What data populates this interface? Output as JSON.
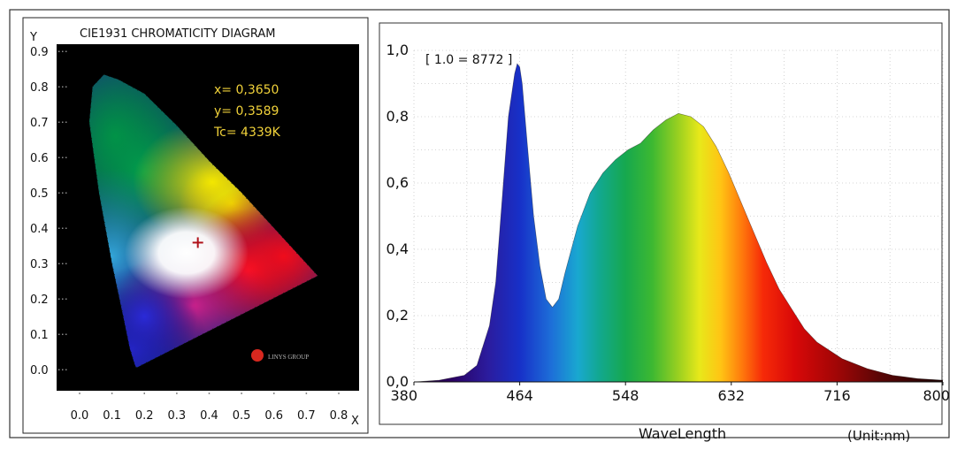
{
  "chart_data": [
    {
      "type": "scatter",
      "title": "CIE1931 CHROMATICITY DIAGRAM",
      "xlabel": "X",
      "ylabel": "Y",
      "xlim": [
        0.0,
        0.8
      ],
      "ylim": [
        0.0,
        0.9
      ],
      "x_ticks": [
        "0.0",
        "0.1",
        "0.2",
        "0.3",
        "0.4",
        "0.5",
        "0.6",
        "0.7",
        "0.8"
      ],
      "y_ticks": [
        "0.0",
        "0.1",
        "0.2",
        "0.3",
        "0.4",
        "0.5",
        "0.6",
        "0.7",
        "0.8",
        "0.9"
      ],
      "annotations": {
        "x": "x= 0,3650",
        "y": "y= 0,3589",
        "tc": "Tc= 4339K"
      },
      "point": {
        "x": 0.365,
        "y": 0.3589,
        "marker": "+",
        "color": "#b0121a"
      },
      "locus": [
        [
          0.175,
          0.005
        ],
        [
          0.17,
          0.015
        ],
        [
          0.155,
          0.06
        ],
        [
          0.135,
          0.15
        ],
        [
          0.1,
          0.3
        ],
        [
          0.06,
          0.5
        ],
        [
          0.03,
          0.7
        ],
        [
          0.04,
          0.8
        ],
        [
          0.075,
          0.834
        ],
        [
          0.12,
          0.82
        ],
        [
          0.2,
          0.78
        ],
        [
          0.3,
          0.69
        ],
        [
          0.4,
          0.59
        ],
        [
          0.5,
          0.5
        ],
        [
          0.6,
          0.4
        ],
        [
          0.7,
          0.3
        ],
        [
          0.735,
          0.265
        ]
      ],
      "background": "#000000",
      "text_color": "#f1d23a",
      "logo_text": "LINYS GROUP"
    },
    {
      "type": "area",
      "title": "",
      "xlabel": "WaveLength",
      "ylabel": "",
      "unit_label": "(Unit:nm)",
      "scale_note": "[ 1.0 = 8772 ]",
      "xlim": [
        380,
        800
      ],
      "ylim": [
        0.0,
        1.0
      ],
      "x_ticks": [
        "380",
        "464",
        "548",
        "632",
        "716",
        "800"
      ],
      "y_ticks": [
        "0,0",
        "0,2",
        "0,4",
        "0,6",
        "0,8",
        "1,0"
      ],
      "grid": true,
      "colors": "visible spectrum (violet to red) fill",
      "x": [
        380,
        400,
        420,
        430,
        440,
        445,
        450,
        455,
        460,
        462,
        464,
        466,
        470,
        475,
        480,
        485,
        490,
        495,
        500,
        510,
        520,
        530,
        540,
        550,
        560,
        570,
        580,
        590,
        600,
        610,
        620,
        630,
        640,
        650,
        660,
        670,
        680,
        690,
        700,
        720,
        740,
        760,
        780,
        800
      ],
      "values": [
        0.0,
        0.005,
        0.02,
        0.05,
        0.17,
        0.3,
        0.55,
        0.8,
        0.93,
        0.96,
        0.95,
        0.9,
        0.72,
        0.5,
        0.35,
        0.25,
        0.225,
        0.25,
        0.33,
        0.47,
        0.57,
        0.63,
        0.67,
        0.7,
        0.72,
        0.76,
        0.79,
        0.81,
        0.8,
        0.77,
        0.71,
        0.63,
        0.54,
        0.45,
        0.36,
        0.28,
        0.22,
        0.16,
        0.12,
        0.07,
        0.04,
        0.02,
        0.01,
        0.005
      ]
    }
  ]
}
